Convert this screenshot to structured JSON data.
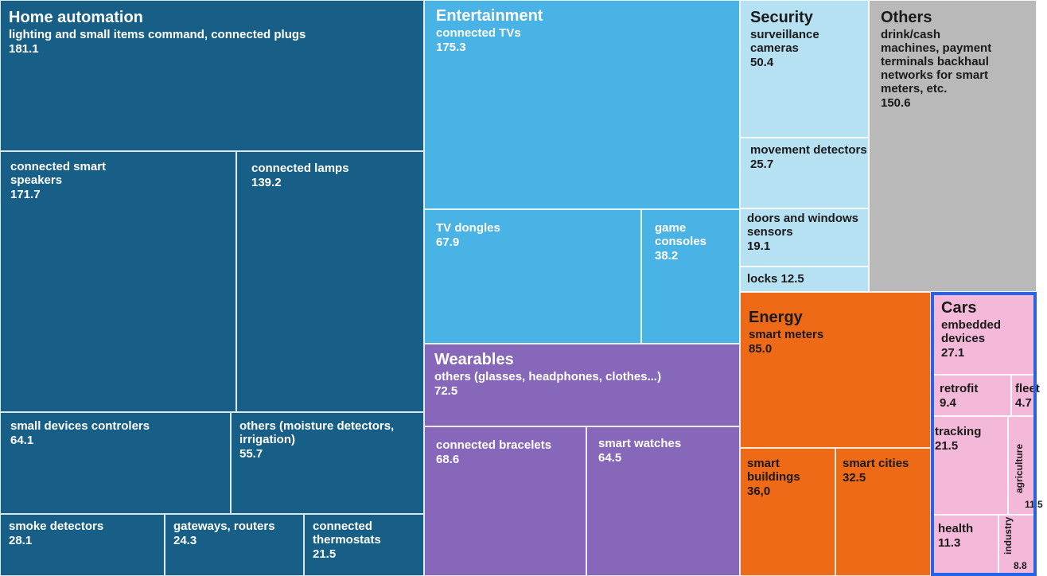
{
  "chart_data": {
    "type": "treemap",
    "title": "",
    "unit": "",
    "sectors": [
      {
        "name": "Home automation",
        "color": "#175f86",
        "text_color": "#ffffff",
        "items": [
          {
            "label": "lighting and small items command, connected plugs",
            "value": 181.1,
            "value_text": "181.1"
          },
          {
            "label": "connected smart speakers",
            "value": 171.7,
            "value_text": "171.7"
          },
          {
            "label": "connected lamps",
            "value": 139.2,
            "value_text": "139.2"
          },
          {
            "label": "small devices controlers",
            "value": 64.1,
            "value_text": "64.1"
          },
          {
            "label": "others (moisture detectors, irrigation)",
            "value": 55.7,
            "value_text": "55.7"
          },
          {
            "label": "smoke detectors",
            "value": 28.1,
            "value_text": "28.1"
          },
          {
            "label": "gateways, routers",
            "value": 24.3,
            "value_text": "24.3"
          },
          {
            "label": "connected thermostats",
            "value": 21.5,
            "value_text": "21.5"
          }
        ]
      },
      {
        "name": "Entertainment",
        "color": "#4ab3e6",
        "text_color": "#ffffff",
        "items": [
          {
            "label": "connected TVs",
            "value": 175.3,
            "value_text": "175.3"
          },
          {
            "label": "TV dongles",
            "value": 67.9,
            "value_text": "67.9"
          },
          {
            "label": "game consoles",
            "value": 38.2,
            "value_text": "38.2"
          }
        ]
      },
      {
        "name": "Wearables",
        "color": "#8667b9",
        "text_color": "#ffffff",
        "items": [
          {
            "label": "others (glasses, headphones, clothes...)",
            "value": 72.5,
            "value_text": "72.5"
          },
          {
            "label": "connected bracelets",
            "value": 68.6,
            "value_text": "68.6"
          },
          {
            "label": "smart watches",
            "value": 64.5,
            "value_text": "64.5"
          }
        ]
      },
      {
        "name": "Security",
        "color": "#b6e1f2",
        "text_color": "#1a1a1a",
        "items": [
          {
            "label": "surveillance cameras",
            "value": 50.4,
            "value_text": "50.4"
          },
          {
            "label": "movement detectors",
            "value": 25.7,
            "value_text": "25.7"
          },
          {
            "label": "doors and windows sensors",
            "value": 19.1,
            "value_text": "19.1"
          },
          {
            "label": "locks",
            "value": 12.5,
            "value_text": "12.5"
          }
        ]
      },
      {
        "name": "Others",
        "color": "#b9b9b9",
        "text_color": "#1a1a1a",
        "items": [
          {
            "label": "drink/cash machines, payment terminals backhaul networks for smart meters, etc.",
            "value": 150.6,
            "value_text": "150.6"
          }
        ]
      },
      {
        "name": "Energy",
        "color": "#ef6a17",
        "text_color": "#1a1a1a",
        "items": [
          {
            "label": "smart meters",
            "value": 85.0,
            "value_text": "85.0"
          },
          {
            "label": "smart buildings",
            "value": 36.0,
            "value_text": "36,0"
          },
          {
            "label": "smart cities",
            "value": 32.5,
            "value_text": "32.5"
          }
        ]
      },
      {
        "name": "Cars",
        "color": "#f4b8d8",
        "text_color": "#1a1a1a",
        "items": [
          {
            "label": "embedded devices",
            "value": 27.1,
            "value_text": "27.1"
          },
          {
            "label": "retrofit",
            "value": 9.4,
            "value_text": "9.4"
          },
          {
            "label": "fleet",
            "value": 4.7,
            "value_text": "4.7"
          },
          {
            "label": "tracking",
            "value": 21.5,
            "value_text": "21.5"
          },
          {
            "label": "agriculture",
            "value": 11.5,
            "value_text": "11.5"
          },
          {
            "label": "health",
            "value": 11.3,
            "value_text": "11.3"
          },
          {
            "label": "industry",
            "value": 8.8,
            "value_text": "8.8"
          }
        ]
      }
    ]
  }
}
